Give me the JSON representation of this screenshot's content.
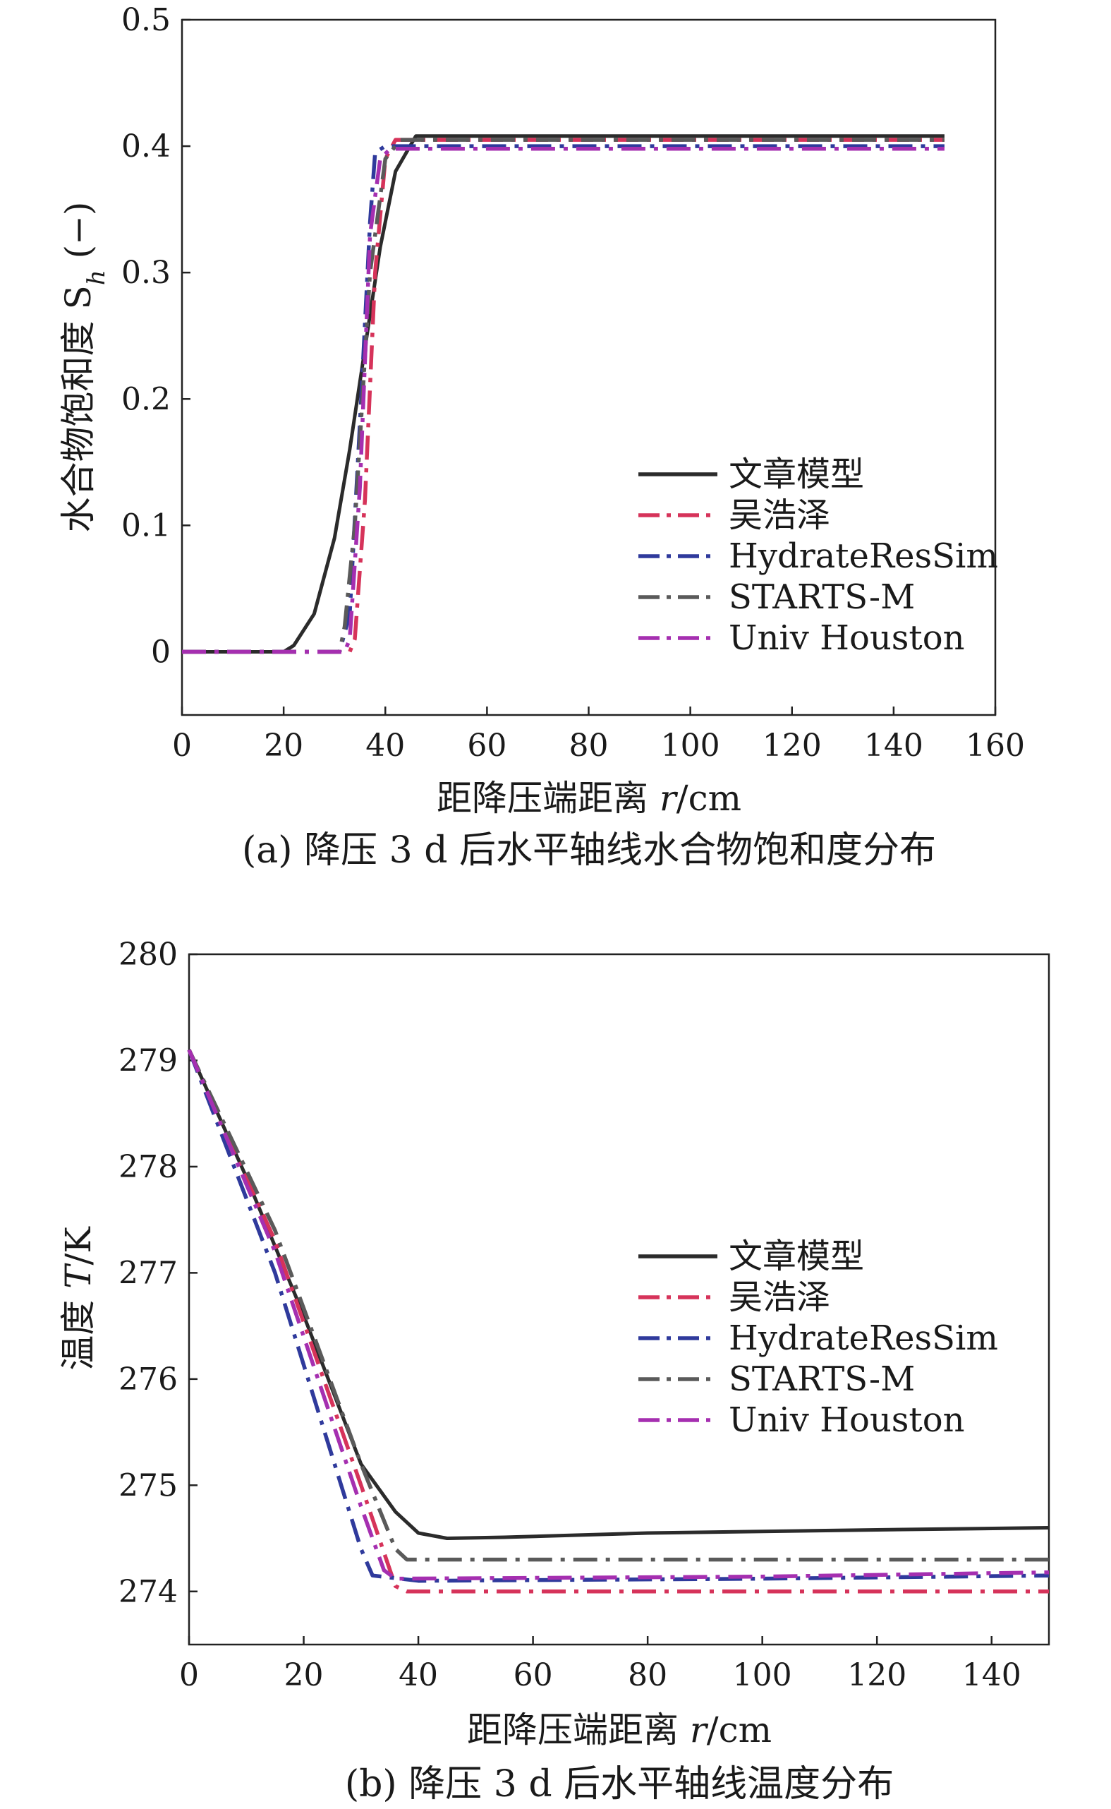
{
  "panels": [
    {
      "caption": "(a) 降压 3 d 后水平轴线水合物饱和度分布",
      "ylabel": "水合物饱和度 S",
      "ylabel_sub": "h",
      "ylabel_suffix": " (−)",
      "xlabel": "距降压端距离 ",
      "xlabel_var": "r",
      "xlabel_unit": "/cm"
    },
    {
      "caption": "(b) 降压 3 d 后水平轴线温度分布",
      "ylabel": "温度 ",
      "ylabel_var": "T",
      "ylabel_unit": "/K",
      "xlabel": "距降压端距离 ",
      "xlabel_var": "r",
      "xlabel_unit": "/cm"
    }
  ],
  "colors": {
    "文章模型": "#2b2b2b",
    "吴浩泽": "#d6335a",
    "HydrateResSim": "#2f3a9c",
    "STARTS-M": "#5a5a5a",
    "Univ Houston": "#a52fb0"
  },
  "chart_data": [
    {
      "type": "line",
      "xlim": [
        0,
        160
      ],
      "ylim": [
        -0.05,
        0.5
      ],
      "xticks": [
        0,
        20,
        40,
        60,
        80,
        100,
        120,
        140,
        160
      ],
      "yticks": [
        0,
        0.1,
        0.2,
        0.3,
        0.4,
        0.5
      ],
      "ytick_labels": [
        "0",
        "0.1",
        "0.2",
        "0.3",
        "0.4",
        "0.5"
      ],
      "legend_position": "lower-right",
      "grid": false,
      "series": [
        {
          "name": "文章模型",
          "dash": "solid",
          "x": [
            0,
            20,
            22,
            26,
            30,
            33,
            36,
            39,
            42,
            46,
            150
          ],
          "y": [
            0,
            0,
            0.005,
            0.03,
            0.09,
            0.16,
            0.24,
            0.32,
            0.38,
            0.408,
            0.408
          ]
        },
        {
          "name": "吴浩泽",
          "dash": "dashdot",
          "x": [
            0,
            33,
            34,
            36,
            38,
            40,
            42,
            150
          ],
          "y": [
            0,
            0,
            0.01,
            0.12,
            0.3,
            0.39,
            0.405,
            0.405
          ]
        },
        {
          "name": "HydrateResSim",
          "dash": "dashdot",
          "x": [
            0,
            31,
            33,
            35,
            37,
            38,
            40,
            150
          ],
          "y": [
            0,
            0,
            0.03,
            0.18,
            0.34,
            0.395,
            0.4,
            0.4
          ]
        },
        {
          "name": "STARTS-M",
          "dash": "dashdot",
          "x": [
            0,
            31,
            32,
            34,
            37,
            40,
            43,
            150
          ],
          "y": [
            0,
            0,
            0.02,
            0.1,
            0.3,
            0.39,
            0.405,
            0.405
          ]
        },
        {
          "name": "Univ Houston",
          "dash": "dashdot",
          "x": [
            0,
            32,
            33,
            35,
            37,
            39,
            41,
            150
          ],
          "y": [
            0,
            0,
            0.01,
            0.13,
            0.33,
            0.39,
            0.398,
            0.398
          ]
        }
      ]
    },
    {
      "type": "line",
      "xlim": [
        0,
        150
      ],
      "ylim": [
        273.5,
        280
      ],
      "xticks": [
        0,
        20,
        40,
        60,
        80,
        100,
        120,
        140
      ],
      "yticks": [
        274,
        275,
        276,
        277,
        278,
        279,
        280
      ],
      "ytick_labels": [
        "274",
        "275",
        "276",
        "277",
        "278",
        "279",
        "280"
      ],
      "legend_position": "right",
      "grid": false,
      "series": [
        {
          "name": "文章模型",
          "dash": "solid",
          "x": [
            0,
            10,
            20,
            30,
            36,
            40,
            45,
            55,
            80,
            120,
            150
          ],
          "y": [
            279.1,
            277.9,
            276.6,
            275.2,
            274.75,
            274.55,
            274.5,
            274.51,
            274.55,
            274.58,
            274.6
          ]
        },
        {
          "name": "吴浩泽",
          "dash": "dashdot",
          "x": [
            0,
            15,
            30,
            36,
            38,
            150
          ],
          "y": [
            279.1,
            277.3,
            275.0,
            274.05,
            274.0,
            274.0
          ]
        },
        {
          "name": "HydrateResSim",
          "dash": "dashdot",
          "x": [
            0,
            15,
            30,
            32,
            40,
            100,
            150
          ],
          "y": [
            279.1,
            277.0,
            274.4,
            274.15,
            274.1,
            274.12,
            274.15
          ]
        },
        {
          "name": "STARTS-M",
          "dash": "dashdot",
          "x": [
            0,
            15,
            30,
            36,
            38,
            150
          ],
          "y": [
            279.1,
            277.4,
            275.2,
            274.4,
            274.3,
            274.3
          ]
        },
        {
          "name": "Univ Houston",
          "dash": "dashdot",
          "x": [
            0,
            15,
            30,
            34,
            36,
            100,
            150
          ],
          "y": [
            279.1,
            277.2,
            274.8,
            274.2,
            274.12,
            274.14,
            274.18
          ]
        }
      ]
    }
  ]
}
